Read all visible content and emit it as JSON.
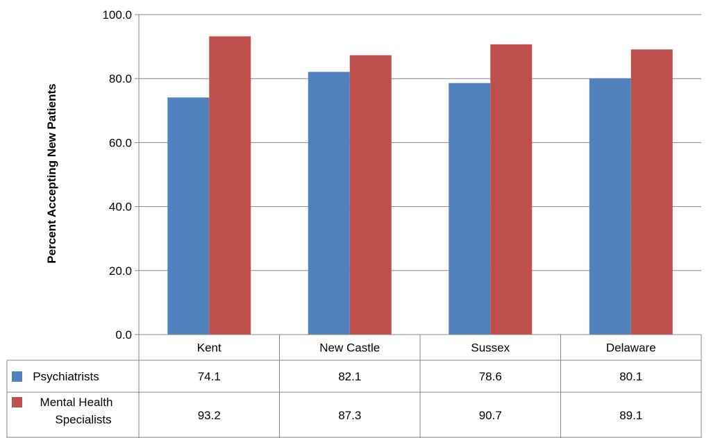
{
  "chart_data": {
    "type": "bar",
    "title": "",
    "xlabel": "",
    "ylabel": "Percent Accepting New Patients",
    "categories": [
      "Kent",
      "New Castle",
      "Sussex",
      "Delaware"
    ],
    "series": [
      {
        "name": "Psychiatrists",
        "legend_lines": [
          "Psychiatrists"
        ],
        "color": "#4F81BD",
        "values": [
          74.1,
          82.1,
          78.6,
          80.1
        ],
        "value_labels": [
          "74.1",
          "82.1",
          "78.6",
          "80.1"
        ]
      },
      {
        "name": "Mental Health Specialists",
        "legend_lines": [
          "Mental Health",
          "Specialists"
        ],
        "color": "#C0504D",
        "values": [
          93.2,
          87.3,
          90.7,
          89.1
        ],
        "value_labels": [
          "93.2",
          "87.3",
          "90.7",
          "89.1"
        ]
      }
    ],
    "ylim": [
      0,
      100
    ],
    "yticks": [
      0,
      20,
      40,
      60,
      80,
      100
    ],
    "ytick_labels": [
      "0.0",
      "20.0",
      "40.0",
      "60.0",
      "80.0",
      "100.0"
    ],
    "grid": true,
    "legend": "data-table",
    "data_table": true
  }
}
